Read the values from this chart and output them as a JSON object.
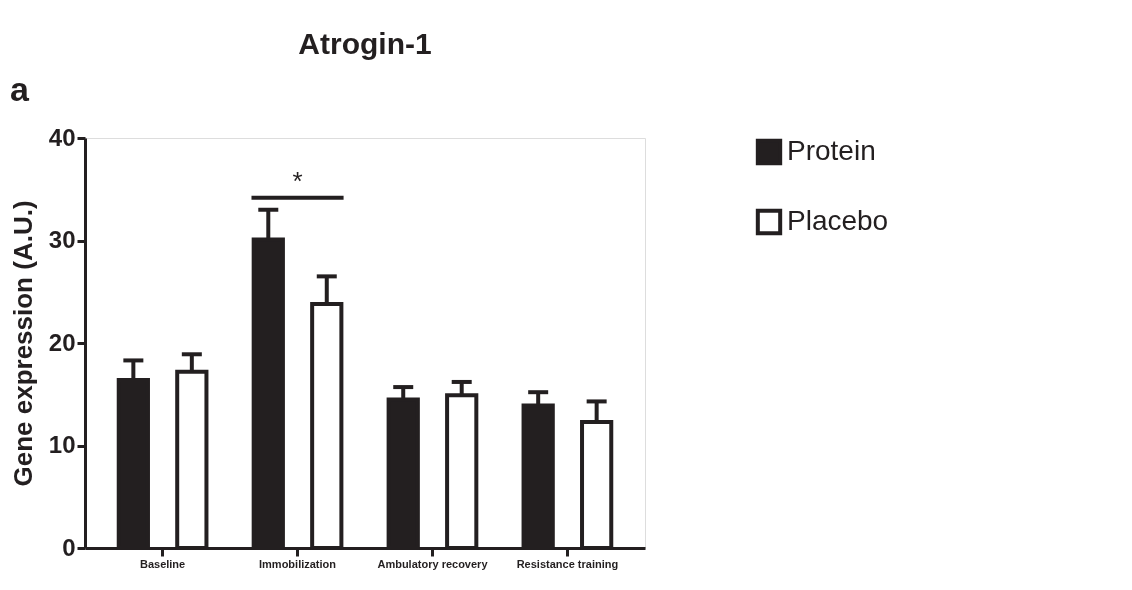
{
  "chart_data": {
    "type": "bar",
    "title": "Atrogin-1",
    "ylabel": "Gene expression (A.U.)",
    "categories": [
      "Baseline",
      "Immobilization",
      "Ambulatory recovery",
      "Resistance training"
    ],
    "series": [
      {
        "name": "Protein",
        "color": "#231f20",
        "values": [
          16.4,
          30.1,
          14.5,
          13.9
        ],
        "errors": [
          [
            16.4,
            18.3
          ],
          [
            30.1,
            33.0
          ],
          [
            14.5,
            15.7
          ],
          [
            13.9,
            15.2
          ]
        ]
      },
      {
        "name": "Placebo",
        "color": "#ffffff",
        "values": [
          17.2,
          23.8,
          14.9,
          12.3
        ],
        "errors": [
          [
            17.2,
            18.9
          ],
          [
            23.8,
            26.5
          ],
          [
            14.9,
            16.2
          ],
          [
            12.3,
            14.3
          ]
        ]
      }
    ],
    "ylim": [
      0,
      40
    ],
    "yticks": [
      0,
      10,
      20,
      30,
      40
    ],
    "grid": false,
    "legend": "top right",
    "annotations": [
      "a",
      "*"
    ]
  }
}
